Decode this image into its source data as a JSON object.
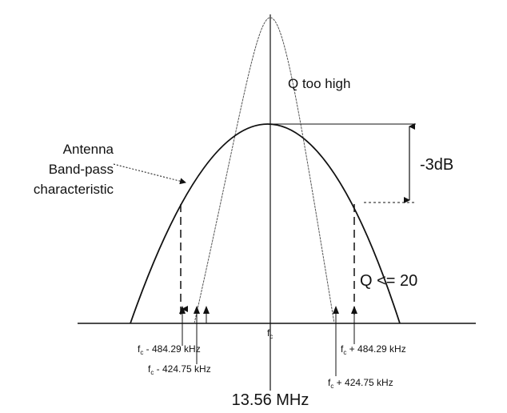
{
  "annotations": {
    "q_high": "Q too high",
    "antenna": [
      "Antenna",
      "Band-pass",
      "characteristic"
    ],
    "db": "-3dB",
    "q_low": "Q <= 20",
    "center_freq": "13.56 MHz"
  },
  "center_label": {
    "base": "f",
    "sub": "c"
  },
  "freq_labels": [
    {
      "base": "f",
      "sub": "c",
      "text": " - 484.29 kHz"
    },
    {
      "base": "f",
      "sub": "c",
      "text": " - 424.75 kHz"
    },
    {
      "base": "f",
      "sub": "c",
      "text": " + 484.29 kHz"
    },
    {
      "base": "f",
      "sub": "c",
      "text": " + 424.75 kHz"
    }
  ]
}
